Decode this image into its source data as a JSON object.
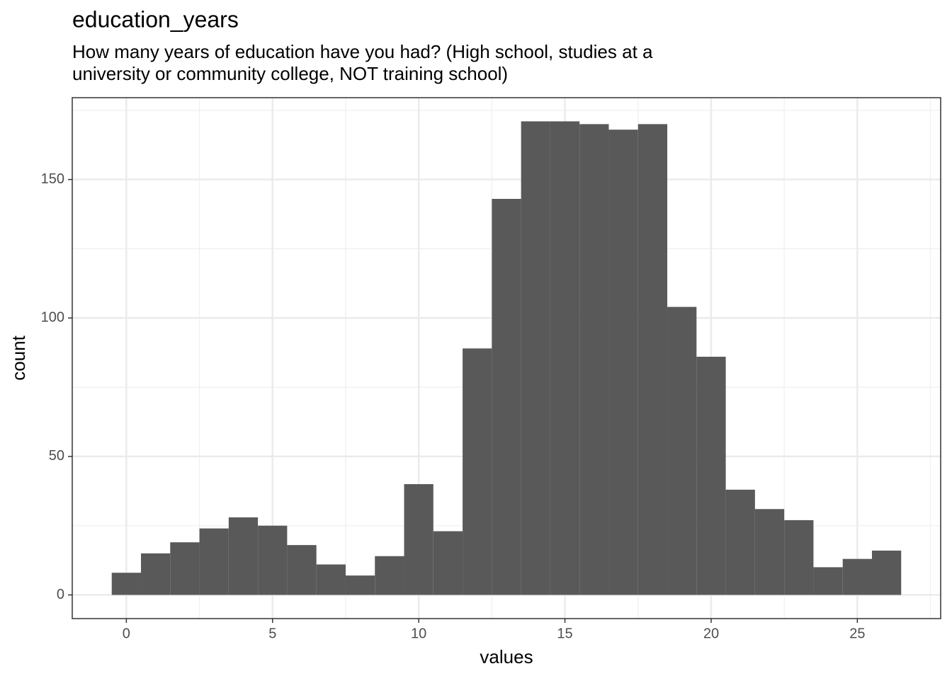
{
  "chart_data": {
    "type": "histogram",
    "title": "education_years",
    "subtitle": [
      "How many years of education have you had? (High school, studies at a",
      "university or community college, NOT training school)"
    ],
    "x_label": "values",
    "y_label": "count",
    "bins": [
      -0.5,
      0.5,
      1.5,
      2.5,
      3.5,
      4.5,
      5.5,
      6.5,
      7.5,
      8.5,
      9.5,
      10.5,
      11.5,
      12.5,
      13.5,
      14.5,
      15.5,
      16.5,
      17.5,
      18.5,
      19.5,
      20.5,
      21.5,
      22.5,
      23.5,
      24.5,
      25.5,
      26.5
    ],
    "counts": [
      8,
      15,
      19,
      24,
      28,
      25,
      18,
      11,
      7,
      14,
      40,
      23,
      89,
      143,
      171,
      171,
      170,
      168,
      170,
      104,
      86,
      38,
      31,
      27,
      10,
      13,
      16
    ],
    "color": "#595959",
    "xlim": [
      -1.85,
      27.85
    ],
    "xticks": [
      0,
      5,
      10,
      15,
      20,
      25
    ],
    "ylim": [
      -8.55,
      179.55
    ],
    "yticks": [
      0,
      50,
      100,
      150
    ],
    "grid": true
  }
}
